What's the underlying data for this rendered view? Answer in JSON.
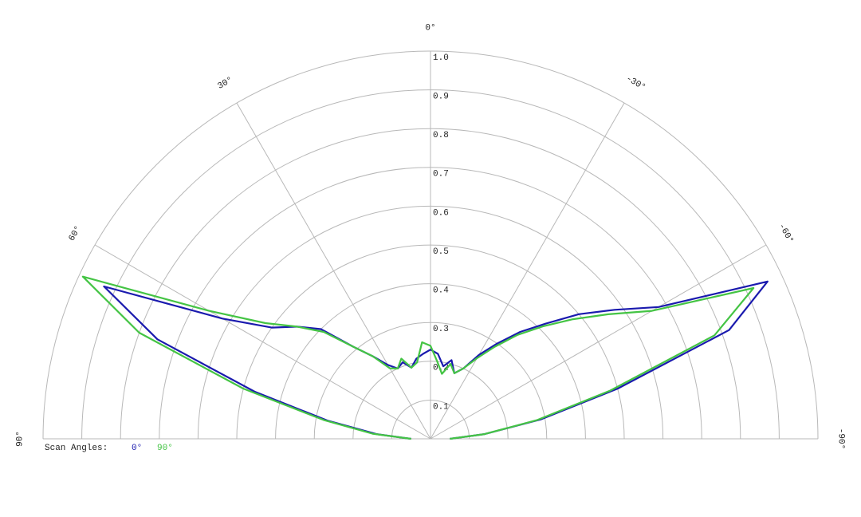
{
  "chart_data": {
    "type": "polar",
    "legend_title": "Scan Angles:",
    "x": [
      90,
      85,
      80,
      75,
      70,
      65,
      60,
      55,
      50,
      45,
      40,
      35,
      30,
      25,
      20,
      15,
      10,
      5,
      0,
      -5,
      -10,
      -15,
      -20,
      -25,
      -30,
      -35,
      -40,
      -45,
      -50,
      -55,
      -60,
      -65,
      -70,
      -75,
      -80,
      -85,
      -90
    ],
    "series": [
      {
        "name": "0°",
        "color": "#1a1aae",
        "values": [
          0.05,
          0.14,
          0.27,
          0.47,
          0.75,
          0.93,
          0.62,
          0.5,
          0.45,
          0.4,
          0.31,
          0.26,
          0.22,
          0.2,
          0.21,
          0.19,
          0.21,
          0.22,
          0.23,
          0.22,
          0.19,
          0.21,
          0.18,
          0.2,
          0.25,
          0.3,
          0.36,
          0.42,
          0.5,
          0.58,
          0.68,
          0.96,
          0.82,
          0.5,
          0.29,
          0.14,
          0.05
        ]
      },
      {
        "name": "90°",
        "color": "#44c444",
        "values": [
          0.05,
          0.15,
          0.28,
          0.5,
          0.8,
          0.99,
          0.66,
          0.52,
          0.45,
          0.39,
          0.31,
          0.26,
          0.21,
          0.2,
          0.22,
          0.19,
          0.2,
          0.25,
          0.24,
          0.2,
          0.17,
          0.2,
          0.18,
          0.2,
          0.24,
          0.29,
          0.35,
          0.41,
          0.48,
          0.56,
          0.66,
          0.92,
          0.78,
          0.48,
          0.28,
          0.14,
          0.05
        ]
      }
    ],
    "rlim": [
      0,
      1
    ],
    "rticks": [
      0.1,
      0.2,
      0.3,
      0.4,
      0.5,
      0.6,
      0.7,
      0.8,
      0.9,
      {
        "value": 1,
        "label": "1.0"
      }
    ],
    "angle_ticks": [
      {
        "value": 90,
        "label": "90°"
      },
      {
        "value": 60,
        "label": "60°"
      },
      {
        "value": 30,
        "label": "30°"
      },
      {
        "value": 0,
        "label": "0°"
      },
      {
        "value": -30,
        "label": "-30°"
      },
      {
        "value": -60,
        "label": "-60°"
      },
      {
        "value": -90,
        "label": "-90°"
      }
    ],
    "grid": true
  }
}
